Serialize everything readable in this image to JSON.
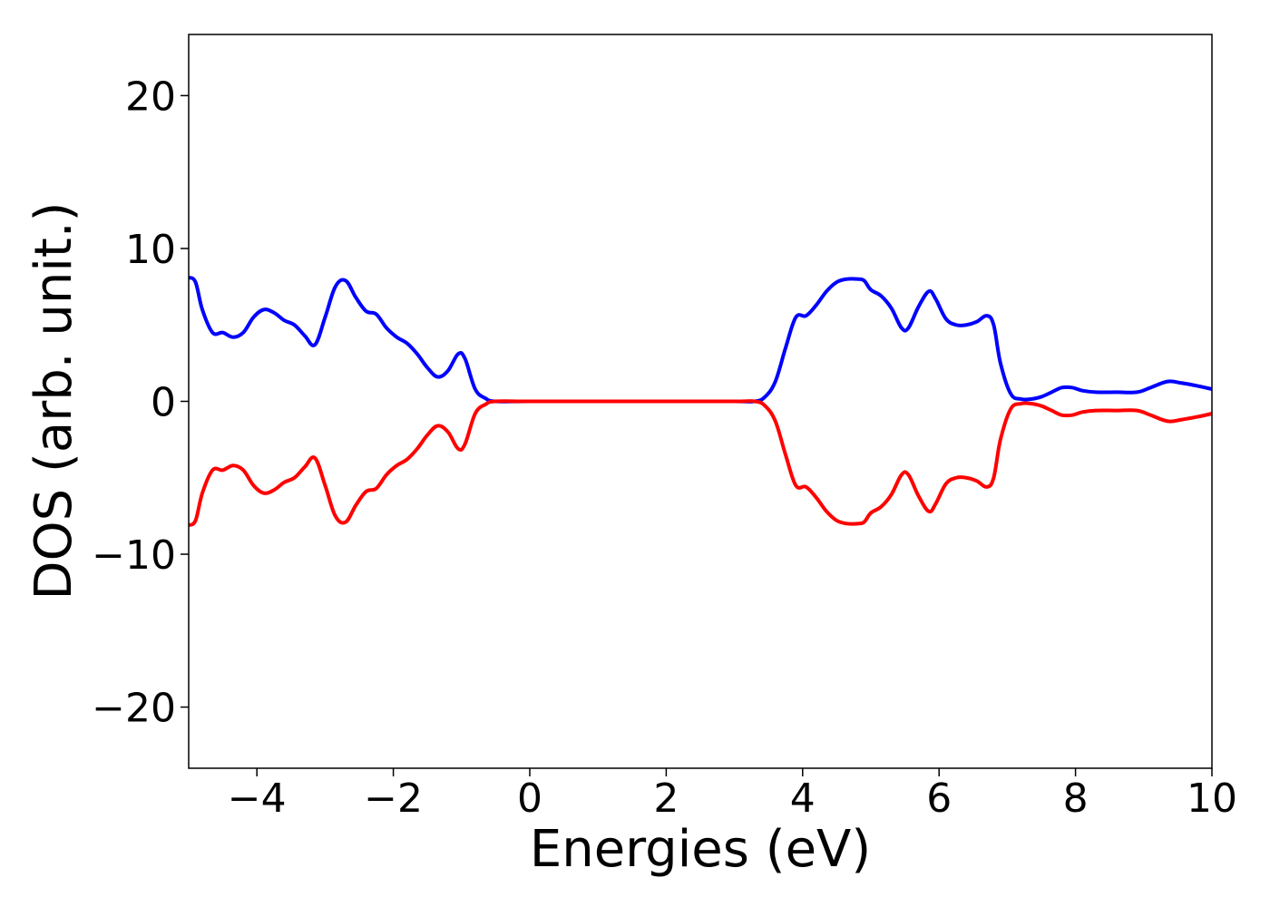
{
  "chart_data": {
    "type": "line",
    "xlabel": "Energies (eV)",
    "ylabel": "DOS (arb. unit.)",
    "xlim": [
      -5,
      10
    ],
    "ylim": [
      -24,
      24
    ],
    "xticks": [
      -4,
      -2,
      0,
      2,
      4,
      6,
      8,
      10
    ],
    "xtick_labels": [
      "−4",
      "−2",
      "0",
      "2",
      "4",
      "6",
      "8",
      "10"
    ],
    "yticks": [
      -20,
      -10,
      0,
      10,
      20
    ],
    "ytick_labels": [
      "−20",
      "−10",
      "0",
      "10",
      "20"
    ],
    "grid": false,
    "series": [
      {
        "color": "#0000ff",
        "x": [
          -5.0,
          -4.9,
          -4.8,
          -4.65,
          -4.5,
          -4.35,
          -4.2,
          -4.05,
          -3.9,
          -3.75,
          -3.6,
          -3.45,
          -3.3,
          -3.15,
          -3.0,
          -2.85,
          -2.7,
          -2.55,
          -2.4,
          -2.25,
          -2.1,
          -1.95,
          -1.8,
          -1.65,
          -1.5,
          -1.35,
          -1.2,
          -1.05,
          -0.95,
          -0.8,
          -0.65,
          -0.5,
          0.0,
          1.0,
          2.0,
          3.0,
          3.3,
          3.45,
          3.6,
          3.75,
          3.9,
          4.05,
          4.2,
          4.35,
          4.5,
          4.65,
          4.8,
          4.9,
          5.0,
          5.15,
          5.3,
          5.45,
          5.55,
          5.7,
          5.85,
          5.95,
          6.1,
          6.25,
          6.4,
          6.55,
          6.7,
          6.8,
          6.9,
          7.05,
          7.2,
          7.35,
          7.5,
          7.65,
          7.8,
          7.95,
          8.1,
          8.3,
          8.6,
          8.9,
          9.1,
          9.35,
          9.55,
          9.8,
          10.0
        ],
        "y": [
          8.1,
          7.8,
          6.0,
          4.5,
          4.5,
          4.2,
          4.5,
          5.5,
          6.0,
          5.8,
          5.3,
          5.0,
          4.3,
          3.7,
          5.5,
          7.5,
          7.9,
          6.8,
          5.9,
          5.7,
          4.8,
          4.2,
          3.8,
          3.1,
          2.2,
          1.6,
          2.0,
          3.1,
          2.8,
          0.8,
          0.2,
          0.0,
          0.0,
          0.0,
          0.0,
          0.0,
          0.0,
          0.3,
          1.3,
          3.5,
          5.5,
          5.6,
          6.3,
          7.2,
          7.8,
          8.0,
          8.0,
          7.9,
          7.3,
          6.9,
          6.1,
          4.8,
          4.8,
          6.2,
          7.2,
          6.7,
          5.4,
          5.0,
          5.0,
          5.2,
          5.6,
          5.0,
          2.5,
          0.5,
          0.15,
          0.15,
          0.3,
          0.6,
          0.9,
          0.9,
          0.7,
          0.6,
          0.6,
          0.6,
          0.9,
          1.3,
          1.2,
          1.0,
          0.8
        ]
      },
      {
        "color": "#ff0000",
        "x": [
          -5.0,
          -4.9,
          -4.8,
          -4.65,
          -4.5,
          -4.35,
          -4.2,
          -4.05,
          -3.9,
          -3.75,
          -3.6,
          -3.45,
          -3.3,
          -3.15,
          -3.0,
          -2.85,
          -2.7,
          -2.55,
          -2.4,
          -2.25,
          -2.1,
          -1.95,
          -1.8,
          -1.65,
          -1.5,
          -1.35,
          -1.2,
          -1.05,
          -0.95,
          -0.8,
          -0.65,
          -0.5,
          0.0,
          1.0,
          2.0,
          3.0,
          3.3,
          3.45,
          3.6,
          3.75,
          3.9,
          4.05,
          4.2,
          4.35,
          4.5,
          4.65,
          4.8,
          4.9,
          5.0,
          5.15,
          5.3,
          5.45,
          5.55,
          5.7,
          5.85,
          5.95,
          6.1,
          6.25,
          6.4,
          6.55,
          6.7,
          6.8,
          6.9,
          7.05,
          7.2,
          7.35,
          7.5,
          7.65,
          7.8,
          7.95,
          8.1,
          8.3,
          8.6,
          8.9,
          9.1,
          9.35,
          9.55,
          9.8,
          10.0
        ],
        "y": [
          -8.1,
          -7.8,
          -6.0,
          -4.5,
          -4.5,
          -4.2,
          -4.5,
          -5.5,
          -6.0,
          -5.8,
          -5.3,
          -5.0,
          -4.3,
          -3.7,
          -5.5,
          -7.5,
          -7.9,
          -6.8,
          -5.9,
          -5.7,
          -4.8,
          -4.2,
          -3.8,
          -3.1,
          -2.2,
          -1.6,
          -2.0,
          -3.1,
          -2.8,
          -0.8,
          -0.2,
          0.0,
          0.0,
          0.0,
          0.0,
          0.0,
          0.0,
          -0.3,
          -1.3,
          -3.5,
          -5.5,
          -5.6,
          -6.3,
          -7.2,
          -7.8,
          -8.0,
          -8.0,
          -7.9,
          -7.3,
          -6.9,
          -6.1,
          -4.8,
          -4.8,
          -6.2,
          -7.2,
          -6.7,
          -5.4,
          -5.0,
          -5.0,
          -5.2,
          -5.6,
          -5.0,
          -2.5,
          -0.5,
          -0.15,
          -0.15,
          -0.3,
          -0.6,
          -0.9,
          -0.9,
          -0.7,
          -0.6,
          -0.6,
          -0.6,
          -0.9,
          -1.3,
          -1.2,
          -1.0,
          -0.8
        ]
      }
    ]
  }
}
